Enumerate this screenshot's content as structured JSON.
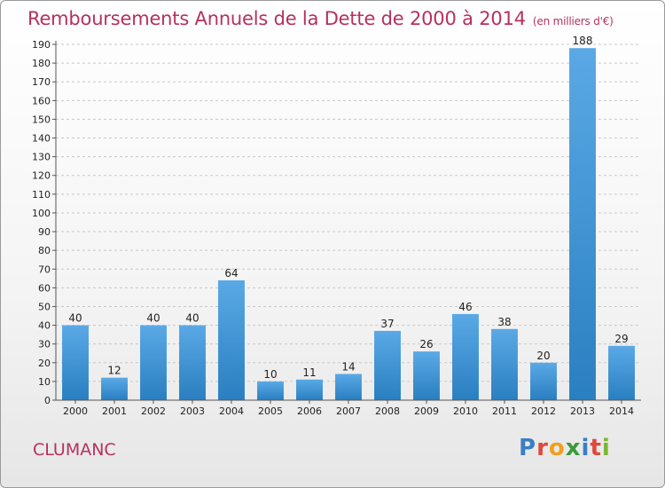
{
  "header": {
    "title": "Remboursements Annuels de la Dette de 2000 à 2014",
    "unit": "(en milliers d'€)"
  },
  "footer": {
    "commune": "CLUMANC",
    "brand_letters": [
      "P",
      "r",
      "o",
      "x",
      "i",
      "t",
      "i"
    ],
    "brand_colors": [
      "#3a7fc4",
      "#e0483a",
      "#f0a020",
      "#3a9a3a",
      "#3a7fc4",
      "#e0483a",
      "#7ab830"
    ]
  },
  "colors": {
    "title": "#b5315e",
    "bar_top": "#5aa9e6",
    "bar_bottom": "#2a7fc0",
    "grid": "#c8c8c8"
  },
  "chart_data": {
    "type": "bar",
    "categories": [
      "2000",
      "2001",
      "2002",
      "2003",
      "2004",
      "2005",
      "2006",
      "2007",
      "2008",
      "2009",
      "2010",
      "2011",
      "2012",
      "2013",
      "2014"
    ],
    "values": [
      40,
      12,
      40,
      40,
      64,
      10,
      11,
      14,
      37,
      26,
      46,
      38,
      20,
      188,
      29
    ],
    "ylim": [
      0,
      190
    ],
    "yticks": [
      0,
      10,
      20,
      30,
      40,
      50,
      60,
      70,
      80,
      90,
      100,
      110,
      120,
      130,
      140,
      150,
      160,
      170,
      180,
      190
    ],
    "grid": true,
    "title": "Remboursements Annuels de la Dette de 2000 à 2014",
    "xlabel": "",
    "ylabel": ""
  }
}
